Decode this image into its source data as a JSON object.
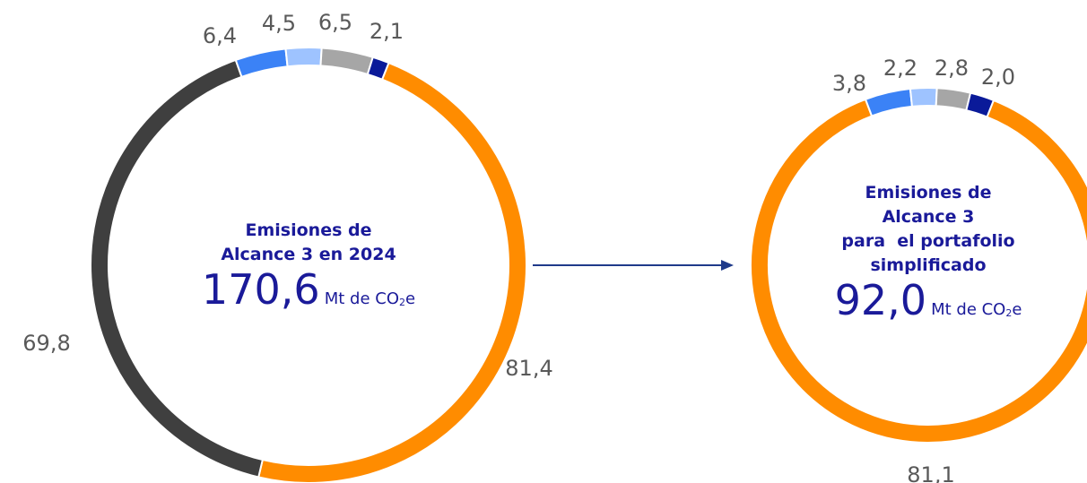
{
  "chart_data": [
    {
      "type": "pie",
      "title_lines": [
        "Emisiones de",
        "Alcance 3 en 2024"
      ],
      "total": "170,6",
      "unit_prefix": "Mt de CO",
      "unit_sub": "2",
      "unit_suffix": "e",
      "slices": [
        {
          "value": 81.4,
          "label": "81,4",
          "color": "#FF8C00"
        },
        {
          "value": 69.8,
          "label": "69,8",
          "color": "#3F3F3F"
        },
        {
          "value": 6.4,
          "label": "6,4",
          "color": "#3B82F6"
        },
        {
          "value": 4.5,
          "label": "4,5",
          "color": "#9EC3FF"
        },
        {
          "value": 6.5,
          "label": "6,5",
          "color": "#A6A6A6"
        },
        {
          "value": 2.1,
          "label": "2,1",
          "color": "#0A1A99"
        }
      ]
    },
    {
      "type": "pie",
      "title_lines": [
        "Emisiones de",
        "Alcance 3",
        "para  el portafolio",
        "simplificado"
      ],
      "total": "92,0",
      "unit_prefix": "Mt de CO",
      "unit_sub": "2",
      "unit_suffix": "e",
      "slices": [
        {
          "value": 81.1,
          "label": "81,1",
          "color": "#FF8C00"
        },
        {
          "value": 3.8,
          "label": "3,8",
          "color": "#3B82F6"
        },
        {
          "value": 2.2,
          "label": "2,2",
          "color": "#9EC3FF"
        },
        {
          "value": 2.8,
          "label": "2,8",
          "color": "#A6A6A6"
        },
        {
          "value": 2.0,
          "label": "2,0",
          "color": "#0A1A99"
        }
      ]
    }
  ],
  "arrow_color": "#1F3A8A"
}
